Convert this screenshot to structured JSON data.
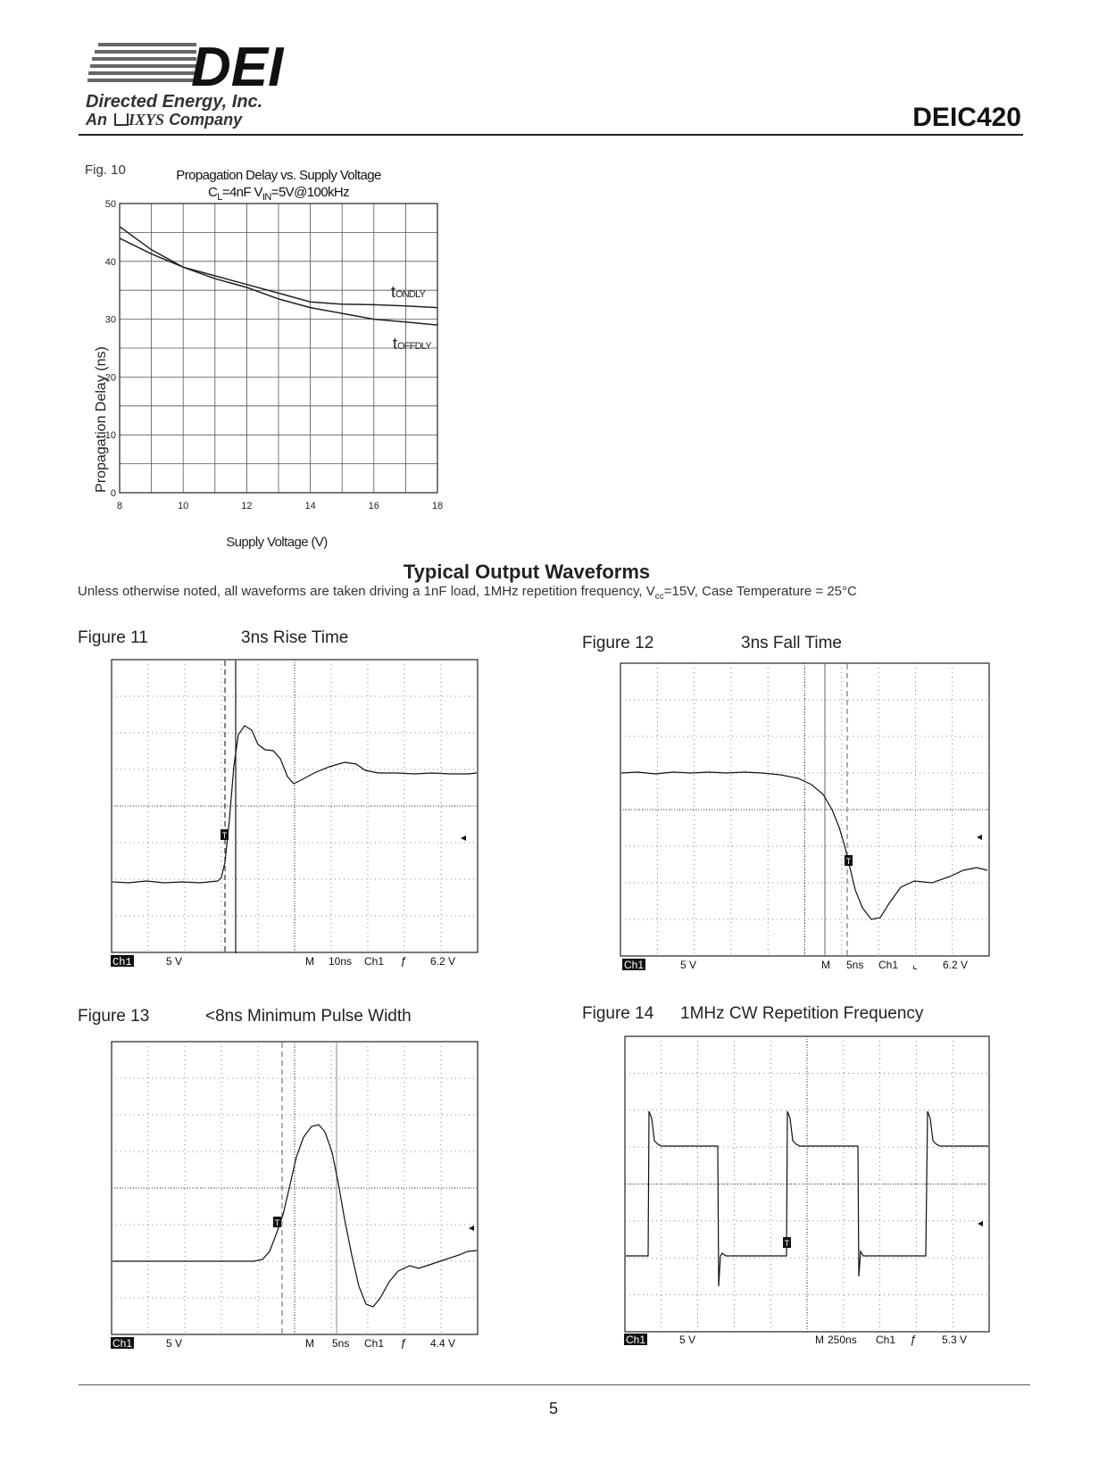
{
  "header": {
    "company_name": "Directed Energy, Inc.",
    "company_tagline_prefix": "An",
    "company_tagline_brand": "IXYS",
    "company_tagline_suffix": "Company",
    "logo_mark": "DEI",
    "document_id": "DEIC420"
  },
  "fig10": {
    "label": "Fig. 10",
    "title_line1": "Propagation Delay vs. Supply Voltage",
    "title_line2_a": "C",
    "title_line2_a_sub": "L",
    "title_line2_b": "=4nF  V",
    "title_line2_b_sub": "IN",
    "title_line2_c": "=5V@100kHz",
    "ylabel": "Propagation Delay (ns)",
    "xlabel": "Supply Voltage (V)",
    "series_on_label": "t",
    "series_on_sub": "ONDLY",
    "series_off_label": "t",
    "series_off_sub": "OFFDLY"
  },
  "chart_data": {
    "type": "line",
    "title": "Propagation Delay vs. Supply Voltage",
    "xlabel": "Supply Voltage (V)",
    "ylabel": "Propagation Delay (ns)",
    "xlim": [
      8,
      18
    ],
    "ylim": [
      0,
      50
    ],
    "x_ticks": [
      8,
      10,
      12,
      14,
      16,
      18
    ],
    "y_ticks": [
      0,
      10,
      20,
      30,
      40,
      50
    ],
    "grid": true,
    "series": [
      {
        "name": "tONDLY",
        "x": [
          8,
          9,
          10,
          11,
          12,
          13,
          14,
          15,
          16,
          17,
          18
        ],
        "values": [
          44,
          41.3,
          39,
          37.5,
          36,
          34.5,
          33,
          32.6,
          32.5,
          32.3,
          32
        ]
      },
      {
        "name": "tOFFDLY",
        "x": [
          8,
          9,
          10,
          11,
          12,
          13,
          14,
          15,
          16,
          17,
          18
        ],
        "values": [
          46,
          42,
          39,
          37,
          35.5,
          33.5,
          32,
          31,
          30,
          29.5,
          29
        ]
      }
    ]
  },
  "section": {
    "title": "Typical Output Waveforms",
    "note_a": "Unless otherwise noted, all waveforms are taken driving a 1nF load, 1MHz repetition frequency, V",
    "note_sub": "cc",
    "note_b": "=15V, Case Temperature = 25°C"
  },
  "figures": [
    {
      "label": "Figure 11",
      "caption": "3ns Rise Time",
      "ch": "Ch1",
      "volts": "5 V",
      "m": "M",
      "time": "10ns",
      "ch2": "Ch1",
      "trig": "6.2 V"
    },
    {
      "label": "Figure 12",
      "caption": "3ns Fall Time",
      "ch": "Ch1",
      "volts": "5 V",
      "m": "M",
      "time": "5ns",
      "ch2": "Ch1",
      "trig": "6.2 V"
    },
    {
      "label": "Figure 13",
      "caption": "<8ns Minimum Pulse Width",
      "ch": "Ch1",
      "volts": "5 V",
      "m": "M",
      "time": "5ns",
      "ch2": "Ch1",
      "trig": "4.4 V"
    },
    {
      "label": "Figure 14",
      "caption": "1MHz CW Repetition Frequency",
      "ch": "Ch1",
      "volts": "5 V",
      "m": "M",
      "time": "250ns",
      "ch2": "Ch1",
      "trig": "5.3 V"
    }
  ],
  "footer": {
    "page_number": "5"
  },
  "icons": {
    "trigger_marker": "trigger-marker-icon",
    "level_arrow": "level-arrow-icon"
  }
}
